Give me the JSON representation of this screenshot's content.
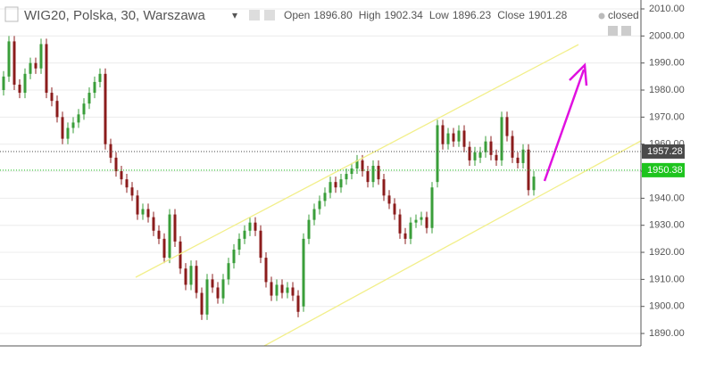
{
  "chart_data": {
    "type": "candlestick",
    "title": "WIG20, Polska, 30, Warszawa",
    "ohlc_legend": [
      {
        "label": "Open",
        "value": "1896.80"
      },
      {
        "label": "High",
        "value": "1902.34"
      },
      {
        "label": "Low",
        "value": "1896.23"
      },
      {
        "label": "Close",
        "value": "1901.28"
      }
    ],
    "status": "closed",
    "up_color": "#3a9e3a",
    "down_color": "#8b1c1c",
    "open": [
      1980,
      1985,
      1998,
      1982,
      1979,
      1986,
      1990,
      1988,
      1997,
      1979,
      1976,
      1970,
      1962,
      1966,
      1968,
      1971,
      1975,
      1979,
      1983,
      1986,
      1960,
      1955,
      1950,
      1947,
      1944,
      1941,
      1934,
      1936,
      1933,
      1928,
      1925,
      1918,
      1934,
      1924,
      1914,
      1908,
      1915,
      1905,
      1897,
      1910,
      1907,
      1903,
      1910,
      1916,
      1921,
      1925,
      1928,
      1931,
      1928,
      1918,
      1909,
      1904,
      1908,
      1905,
      1907,
      1904,
      1900,
      1925,
      1932,
      1936,
      1939,
      1942,
      1946,
      1944,
      1947,
      1949,
      1951,
      1954,
      1950,
      1946,
      1952,
      1947,
      1941,
      1938,
      1934,
      1927,
      1925,
      1931,
      1932,
      1933,
      1929,
      1946,
      1967,
      1960,
      1964,
      1961,
      1965,
      1959,
      1954,
      1955,
      1957,
      1961,
      1956,
      1954,
      1970,
      1963,
      1955,
      1953,
      1958,
      1943
    ],
    "high": [
      1987,
      2000,
      2000,
      1984,
      1988,
      1992,
      1992,
      1999,
      1999,
      1981,
      1978,
      1972,
      1968,
      1970,
      1973,
      1977,
      1981,
      1985,
      1988,
      1988,
      1962,
      1957,
      1952,
      1949,
      1946,
      1943,
      1938,
      1938,
      1935,
      1930,
      1927,
      1936,
      1936,
      1926,
      1916,
      1917,
      1917,
      1907,
      1912,
      1912,
      1909,
      1912,
      1918,
      1923,
      1927,
      1930,
      1933,
      1933,
      1930,
      1920,
      1911,
      1910,
      1910,
      1909,
      1909,
      1906,
      1927,
      1934,
      1938,
      1941,
      1944,
      1948,
      1948,
      1949,
      1951,
      1953,
      1956,
      1956,
      1952,
      1954,
      1954,
      1949,
      1943,
      1940,
      1936,
      1929,
      1933,
      1934,
      1935,
      1935,
      1946,
      1969,
      1969,
      1966,
      1966,
      1967,
      1967,
      1961,
      1959,
      1959,
      1963,
      1963,
      1958,
      1972,
      1972,
      1965,
      1957,
      1960,
      1960,
      1950
    ],
    "low": [
      1978,
      1983,
      1980,
      1977,
      1977,
      1984,
      1986,
      1986,
      1977,
      1974,
      1968,
      1960,
      1960,
      1964,
      1966,
      1969,
      1973,
      1977,
      1981,
      1958,
      1953,
      1948,
      1945,
      1942,
      1939,
      1932,
      1932,
      1931,
      1926,
      1923,
      1916,
      1916,
      1922,
      1912,
      1906,
      1906,
      1903,
      1895,
      1895,
      1905,
      1901,
      1901,
      1908,
      1914,
      1919,
      1923,
      1926,
      1926,
      1916,
      1907,
      1902,
      1902,
      1903,
      1903,
      1902,
      1896,
      1898,
      1923,
      1930,
      1934,
      1937,
      1940,
      1942,
      1942,
      1945,
      1947,
      1949,
      1948,
      1944,
      1944,
      1945,
      1939,
      1936,
      1932,
      1925,
      1923,
      1923,
      1929,
      1930,
      1927,
      1927,
      1944,
      1958,
      1958,
      1959,
      1959,
      1957,
      1952,
      1952,
      1953,
      1955,
      1954,
      1952,
      1952,
      1961,
      1953,
      1951,
      1951,
      1941,
      1941
    ],
    "close": [
      1985,
      1998,
      1982,
      1979,
      1986,
      1990,
      1988,
      1997,
      1979,
      1976,
      1970,
      1962,
      1966,
      1968,
      1971,
      1975,
      1979,
      1983,
      1986,
      1960,
      1955,
      1950,
      1947,
      1944,
      1941,
      1934,
      1936,
      1933,
      1928,
      1925,
      1918,
      1934,
      1924,
      1914,
      1908,
      1915,
      1905,
      1897,
      1910,
      1907,
      1903,
      1910,
      1916,
      1921,
      1925,
      1928,
      1931,
      1928,
      1918,
      1909,
      1904,
      1908,
      1905,
      1907,
      1904,
      1898,
      1925,
      1932,
      1936,
      1939,
      1942,
      1946,
      1944,
      1947,
      1949,
      1951,
      1954,
      1950,
      1946,
      1952,
      1947,
      1941,
      1938,
      1934,
      1927,
      1925,
      1931,
      1932,
      1933,
      1929,
      1944,
      1967,
      1960,
      1964,
      1961,
      1965,
      1959,
      1954,
      1957,
      1957,
      1961,
      1956,
      1954,
      1970,
      1963,
      1955,
      1953,
      1958,
      1943,
      1948
    ],
    "ylim": [
      1885.4,
      2013.3
    ],
    "yticks": [
      {
        "value": 1890,
        "label": "1890.00"
      },
      {
        "value": 1900,
        "label": "1900.00"
      },
      {
        "value": 1910,
        "label": "1910.00"
      },
      {
        "value": 1920,
        "label": "1920.00"
      },
      {
        "value": 1930,
        "label": "1930.00"
      },
      {
        "value": 1940,
        "label": "1940.00"
      },
      {
        "value": 1950,
        "label": "1950.00"
      },
      {
        "value": 1960,
        "label": "1960.00"
      },
      {
        "value": 1970,
        "label": "1970.00"
      },
      {
        "value": 1980,
        "label": "1980.00"
      },
      {
        "value": 1990,
        "label": "1990.00"
      },
      {
        "value": 2000,
        "label": "2000.00"
      },
      {
        "value": 2010,
        "label": "2010.00"
      }
    ],
    "grid": true,
    "price_lines": [
      {
        "value": 1957.28,
        "color": "#4a4a4a"
      },
      {
        "value": 1950.38,
        "color": "#1ec41e"
      }
    ]
  }
}
